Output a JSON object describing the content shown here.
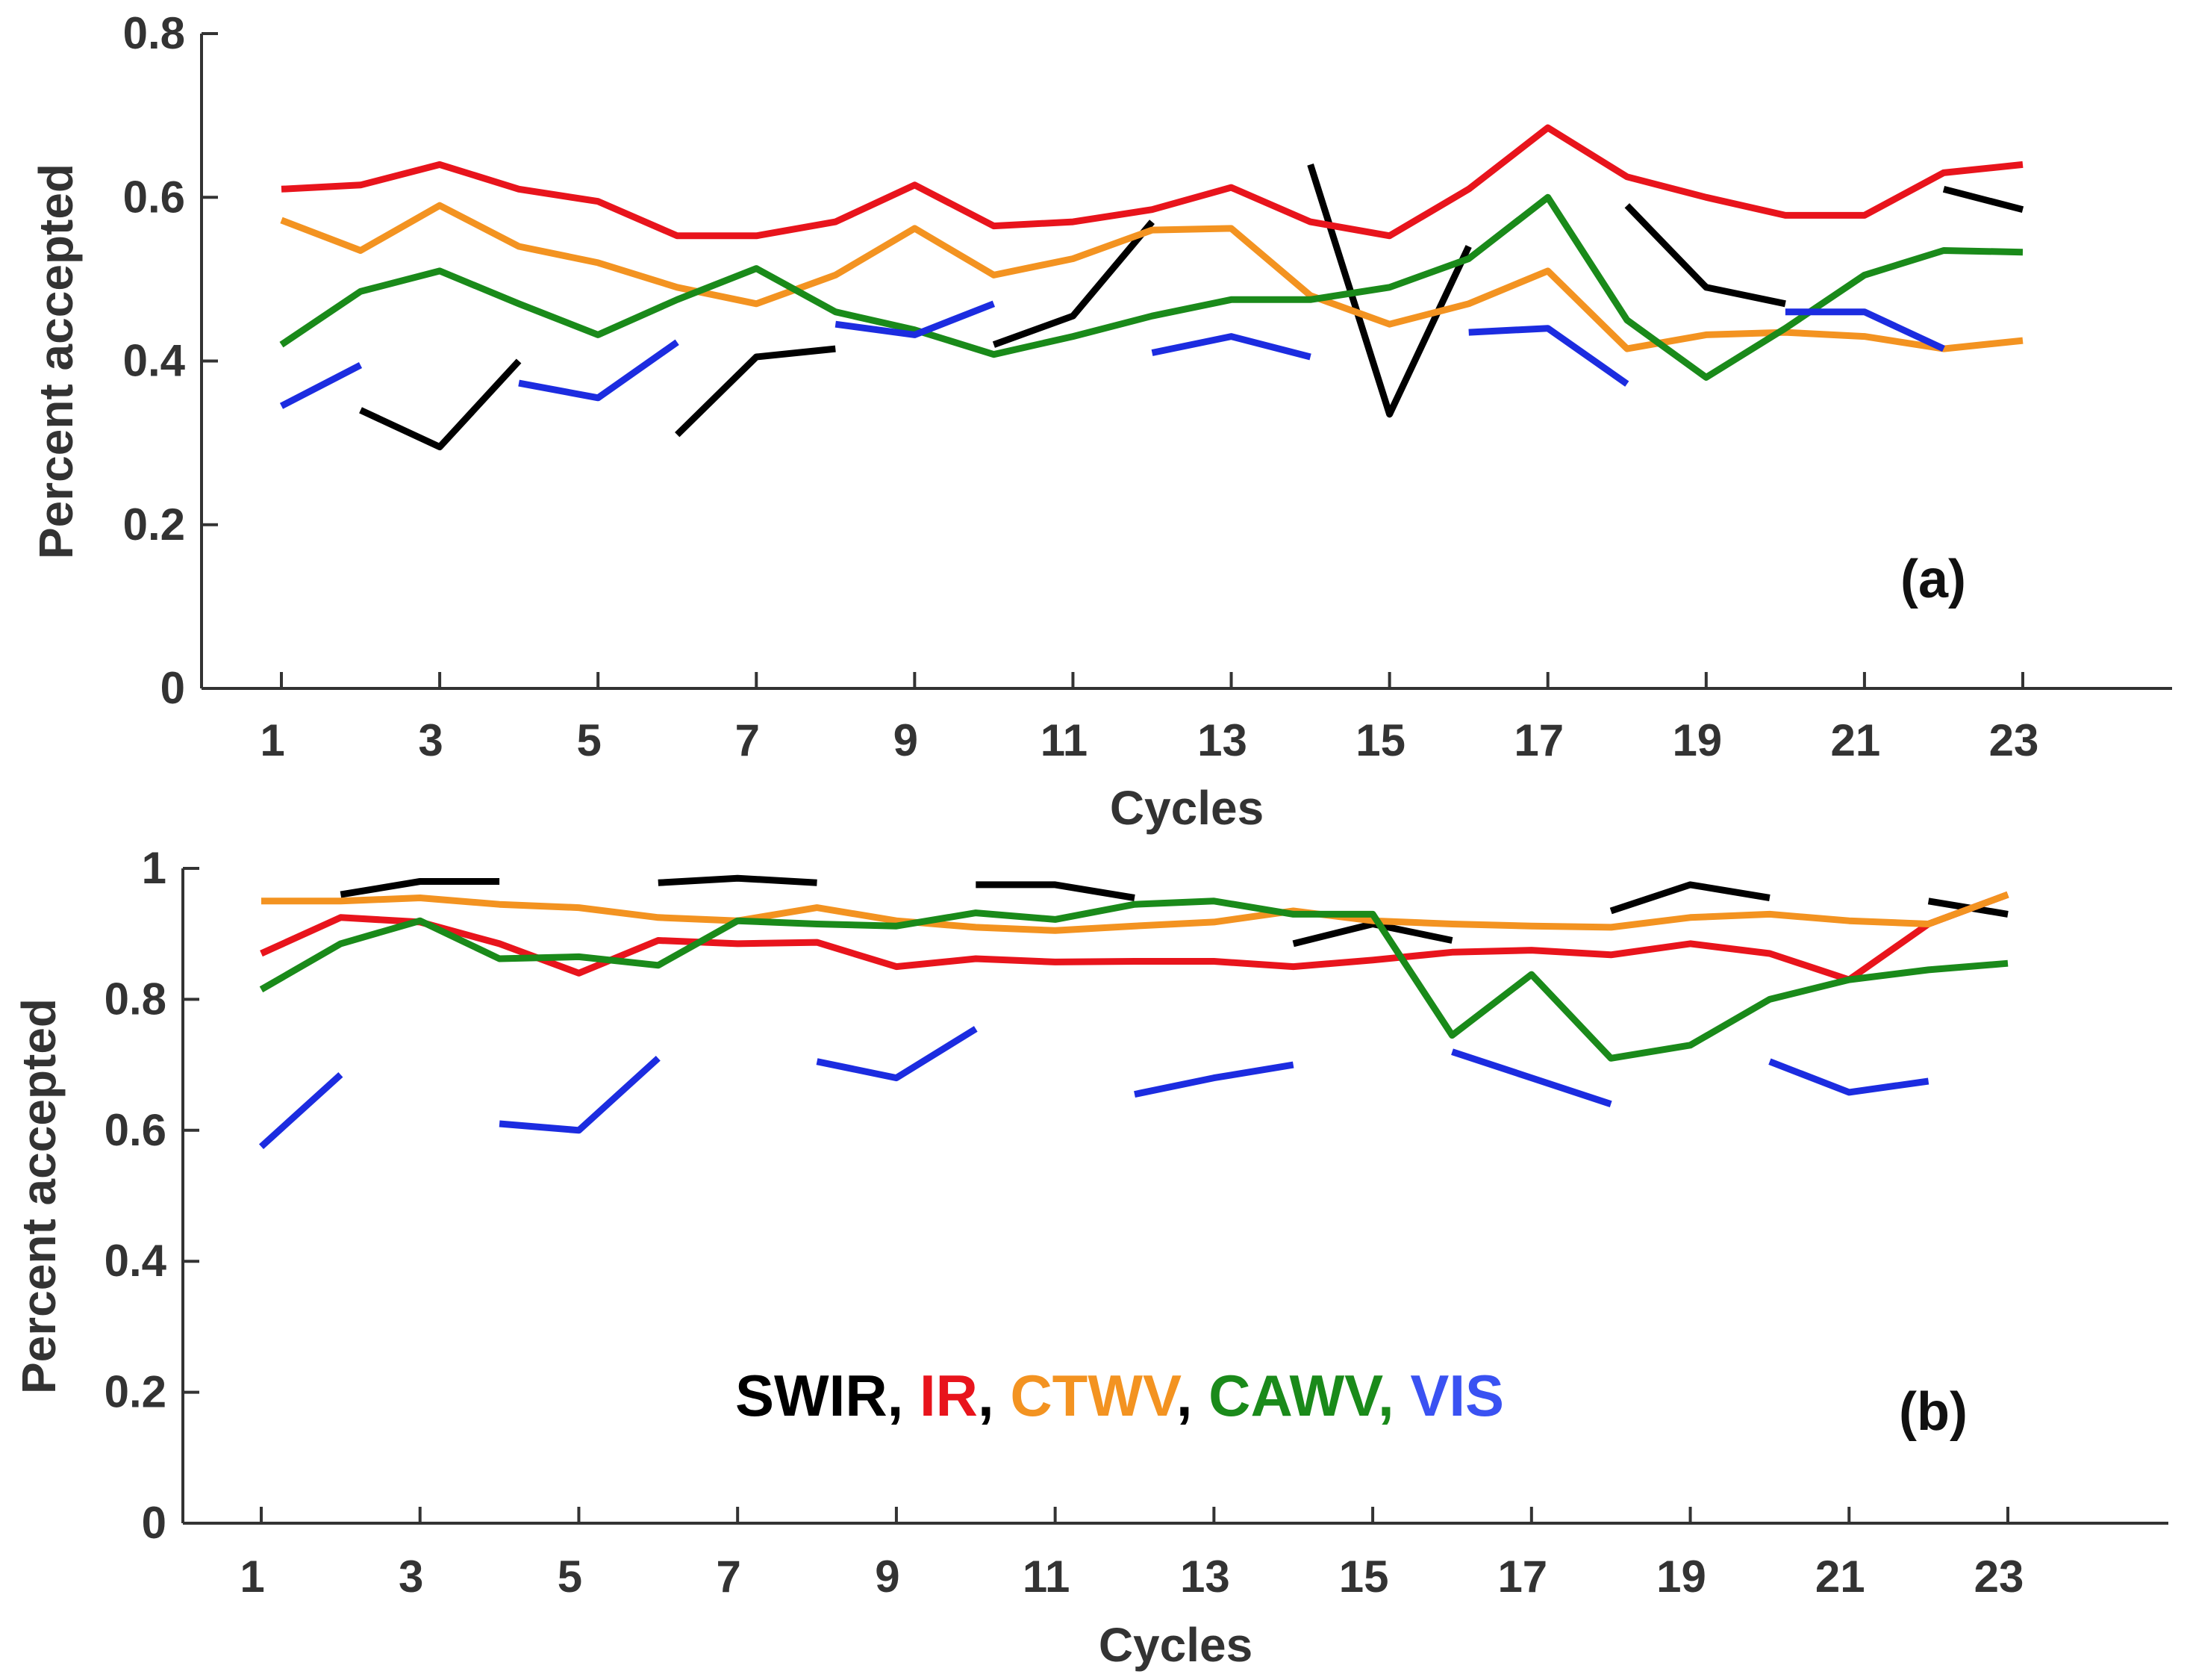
{
  "chart_data": [
    {
      "panel": "(a)",
      "type": "line",
      "xlabel": "Cycles",
      "ylabel": "Percent accepted",
      "xlim": [
        0,
        25
      ],
      "ylim": [
        0,
        0.8
      ],
      "xticks": [
        1,
        3,
        5,
        7,
        9,
        11,
        13,
        15,
        17,
        19,
        21,
        23
      ],
      "yticks": [
        0,
        0.2,
        0.4,
        0.6,
        0.8
      ],
      "ytick_labels": [
        "0",
        "0.2",
        "0.4",
        "0.6",
        "0.8"
      ],
      "series": [
        {
          "name": "SWIR",
          "color": "#000000",
          "values": [
            null,
            0.34,
            0.295,
            0.4,
            null,
            0.31,
            0.405,
            0.415,
            null,
            0.42,
            0.455,
            0.57,
            null,
            0.64,
            0.335,
            0.54,
            null,
            0.59,
            0.49,
            0.47,
            null,
            0.61,
            0.585
          ]
        },
        {
          "name": "IR",
          "color": "#e8141c",
          "values": [
            0.61,
            0.615,
            0.64,
            0.61,
            0.595,
            0.553,
            0.553,
            0.57,
            0.615,
            0.565,
            0.57,
            0.585,
            0.612,
            0.57,
            0.553,
            0.61,
            0.685,
            0.625,
            0.6,
            0.578,
            0.578,
            0.63,
            0.64
          ]
        },
        {
          "name": "CTWV",
          "color": "#f39321",
          "values": [
            0.572,
            0.535,
            0.59,
            0.54,
            0.52,
            0.49,
            0.47,
            0.505,
            0.562,
            0.505,
            0.525,
            0.56,
            0.562,
            0.48,
            0.445,
            0.47,
            0.51,
            0.415,
            0.432,
            0.435,
            0.43,
            0.415,
            0.425
          ]
        },
        {
          "name": "CAWV",
          "color": "#1a8a1a",
          "values": [
            0.42,
            0.485,
            0.51,
            0.47,
            0.432,
            0.475,
            0.513,
            0.46,
            0.438,
            0.408,
            0.43,
            0.455,
            0.475,
            0.475,
            0.49,
            0.525,
            0.6,
            0.45,
            0.38,
            0.44,
            0.505,
            0.535,
            0.533
          ]
        },
        {
          "name": "VIS",
          "color": "#1c2ce0",
          "values": [
            0.345,
            0.395,
            null,
            0.373,
            0.355,
            0.423,
            null,
            0.445,
            0.432,
            0.47,
            null,
            0.41,
            0.43,
            0.405,
            null,
            0.435,
            0.44,
            0.372,
            null,
            0.46,
            0.46,
            0.415,
            null
          ]
        }
      ]
    },
    {
      "panel": "(b)",
      "type": "line",
      "xlabel": "Cycles",
      "ylabel": "Percent accepted",
      "xlim": [
        0,
        25
      ],
      "ylim": [
        0,
        1
      ],
      "xticks": [
        1,
        3,
        5,
        7,
        9,
        11,
        13,
        15,
        17,
        19,
        21,
        23
      ],
      "yticks": [
        0,
        0.2,
        0.4,
        0.6,
        0.8,
        1
      ],
      "ytick_labels": [
        "0",
        "0.2",
        "0.4",
        "0.6",
        "0.8",
        "1"
      ],
      "series": [
        {
          "name": "SWIR",
          "color": "#000000",
          "values": [
            null,
            0.96,
            0.98,
            0.98,
            null,
            0.978,
            0.985,
            0.978,
            null,
            0.975,
            0.975,
            0.955,
            null,
            0.885,
            0.915,
            0.89,
            null,
            0.935,
            0.975,
            0.955,
            null,
            0.95,
            0.93
          ]
        },
        {
          "name": "IR",
          "color": "#e8141c",
          "values": [
            0.87,
            0.925,
            0.918,
            0.885,
            0.84,
            0.89,
            0.885,
            0.887,
            0.85,
            0.862,
            0.857,
            0.858,
            0.858,
            0.85,
            0.86,
            0.872,
            0.875,
            0.868,
            0.885,
            0.87,
            0.83,
            0.915,
            0.96
          ]
        },
        {
          "name": "CTWV",
          "color": "#f39321",
          "values": [
            0.95,
            0.95,
            0.955,
            0.945,
            0.94,
            0.925,
            0.92,
            0.94,
            0.92,
            0.91,
            0.905,
            0.912,
            0.918,
            0.935,
            0.92,
            0.915,
            0.912,
            0.91,
            0.925,
            0.93,
            0.92,
            0.915,
            0.96
          ]
        },
        {
          "name": "CAWV",
          "color": "#1a8a1a",
          "values": [
            0.815,
            0.885,
            0.92,
            0.862,
            0.865,
            0.852,
            0.92,
            0.915,
            0.912,
            0.932,
            0.922,
            0.945,
            0.95,
            0.93,
            0.93,
            0.745,
            0.838,
            0.71,
            0.73,
            0.8,
            0.83,
            0.845,
            0.855
          ]
        },
        {
          "name": "VIS",
          "color": "#1c2ce0",
          "values": [
            0.575,
            0.685,
            null,
            0.61,
            0.6,
            0.71,
            null,
            0.705,
            0.68,
            0.755,
            null,
            0.655,
            0.68,
            0.7,
            null,
            0.72,
            0.68,
            0.64,
            null,
            0.705,
            0.658,
            0.675,
            null
          ]
        }
      ]
    }
  ],
  "legend": {
    "items": [
      {
        "text": "SWIR",
        "color": "#000000"
      },
      {
        "text": ", ",
        "color": "#000000"
      },
      {
        "text": "IR",
        "color": "#e8141c"
      },
      {
        "text": ", ",
        "color": "#000000"
      },
      {
        "text": "CTWV",
        "color": "#f39321"
      },
      {
        "text": ", ",
        "color": "#000000"
      },
      {
        "text": "CAWV, ",
        "color": "#1a8a1a"
      },
      {
        "text": "VIS",
        "color": "#3a52f2"
      }
    ]
  }
}
